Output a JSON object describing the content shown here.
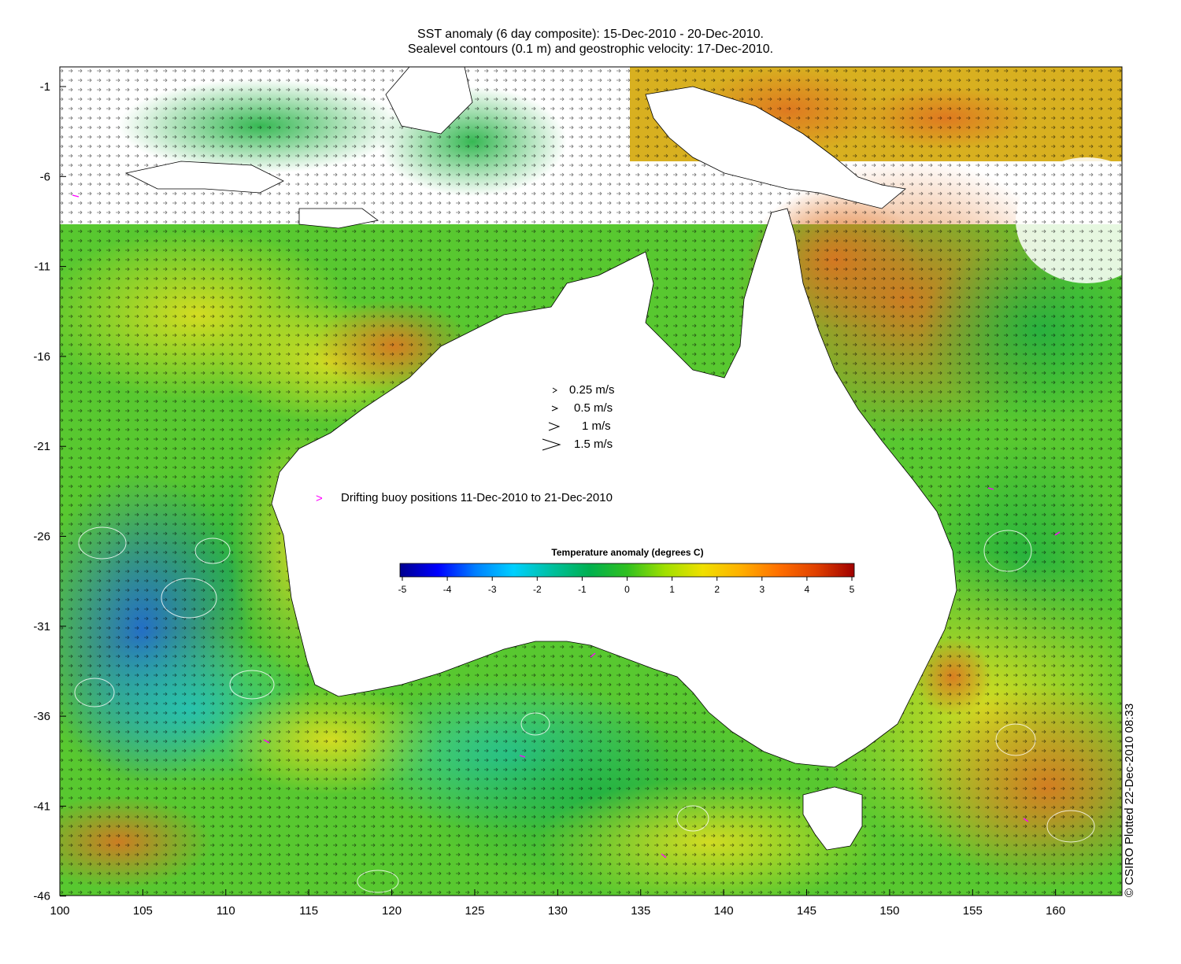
{
  "title": {
    "line1": "SST anomaly (6 day composite): 15-Dec-2010 - 20-Dec-2010.",
    "line2": "Sealevel contours (0.1 m) and geostrophic velocity: 17-Dec-2010."
  },
  "axes": {
    "x_ticks": [
      "100",
      "105",
      "110",
      "115",
      "120",
      "125",
      "130",
      "135",
      "140",
      "145",
      "150",
      "155",
      "160"
    ],
    "y_ticks": [
      "-1",
      "-6",
      "-11",
      "-16",
      "-21",
      "-26",
      "-31",
      "-36",
      "-41",
      "-46"
    ],
    "x_range": [
      100,
      164
    ],
    "y_range": [
      -46,
      0
    ]
  },
  "velocity_legend": [
    {
      "arrow": ">",
      "label": "0.25 m/s"
    },
    {
      "arrow": ">",
      "label": "0.5 m/s"
    },
    {
      "arrow": ">",
      "label": "1 m/s"
    },
    {
      "arrow": ">",
      "label": "1.5 m/s"
    }
  ],
  "buoy_legend": {
    "symbol": ">",
    "label": "Drifting buoy positions 11-Dec-2010 to 21-Dec-2010",
    "color": "#ff00ff"
  },
  "colorbar": {
    "title": "Temperature anomaly (degrees C)",
    "ticks": [
      "-5",
      "-4",
      "-3",
      "-2",
      "-1",
      "0",
      "1",
      "2",
      "3",
      "4",
      "5"
    ],
    "colors": [
      "#00008f",
      "#0000ff",
      "#0080ff",
      "#00d0ff",
      "#00c0a0",
      "#00b050",
      "#30c020",
      "#a0e000",
      "#f0e000",
      "#ffb000",
      "#ff7000",
      "#e04000",
      "#a00000"
    ]
  },
  "credit": "© CSIRO Plotted 22-Dec-2010 08:33"
}
